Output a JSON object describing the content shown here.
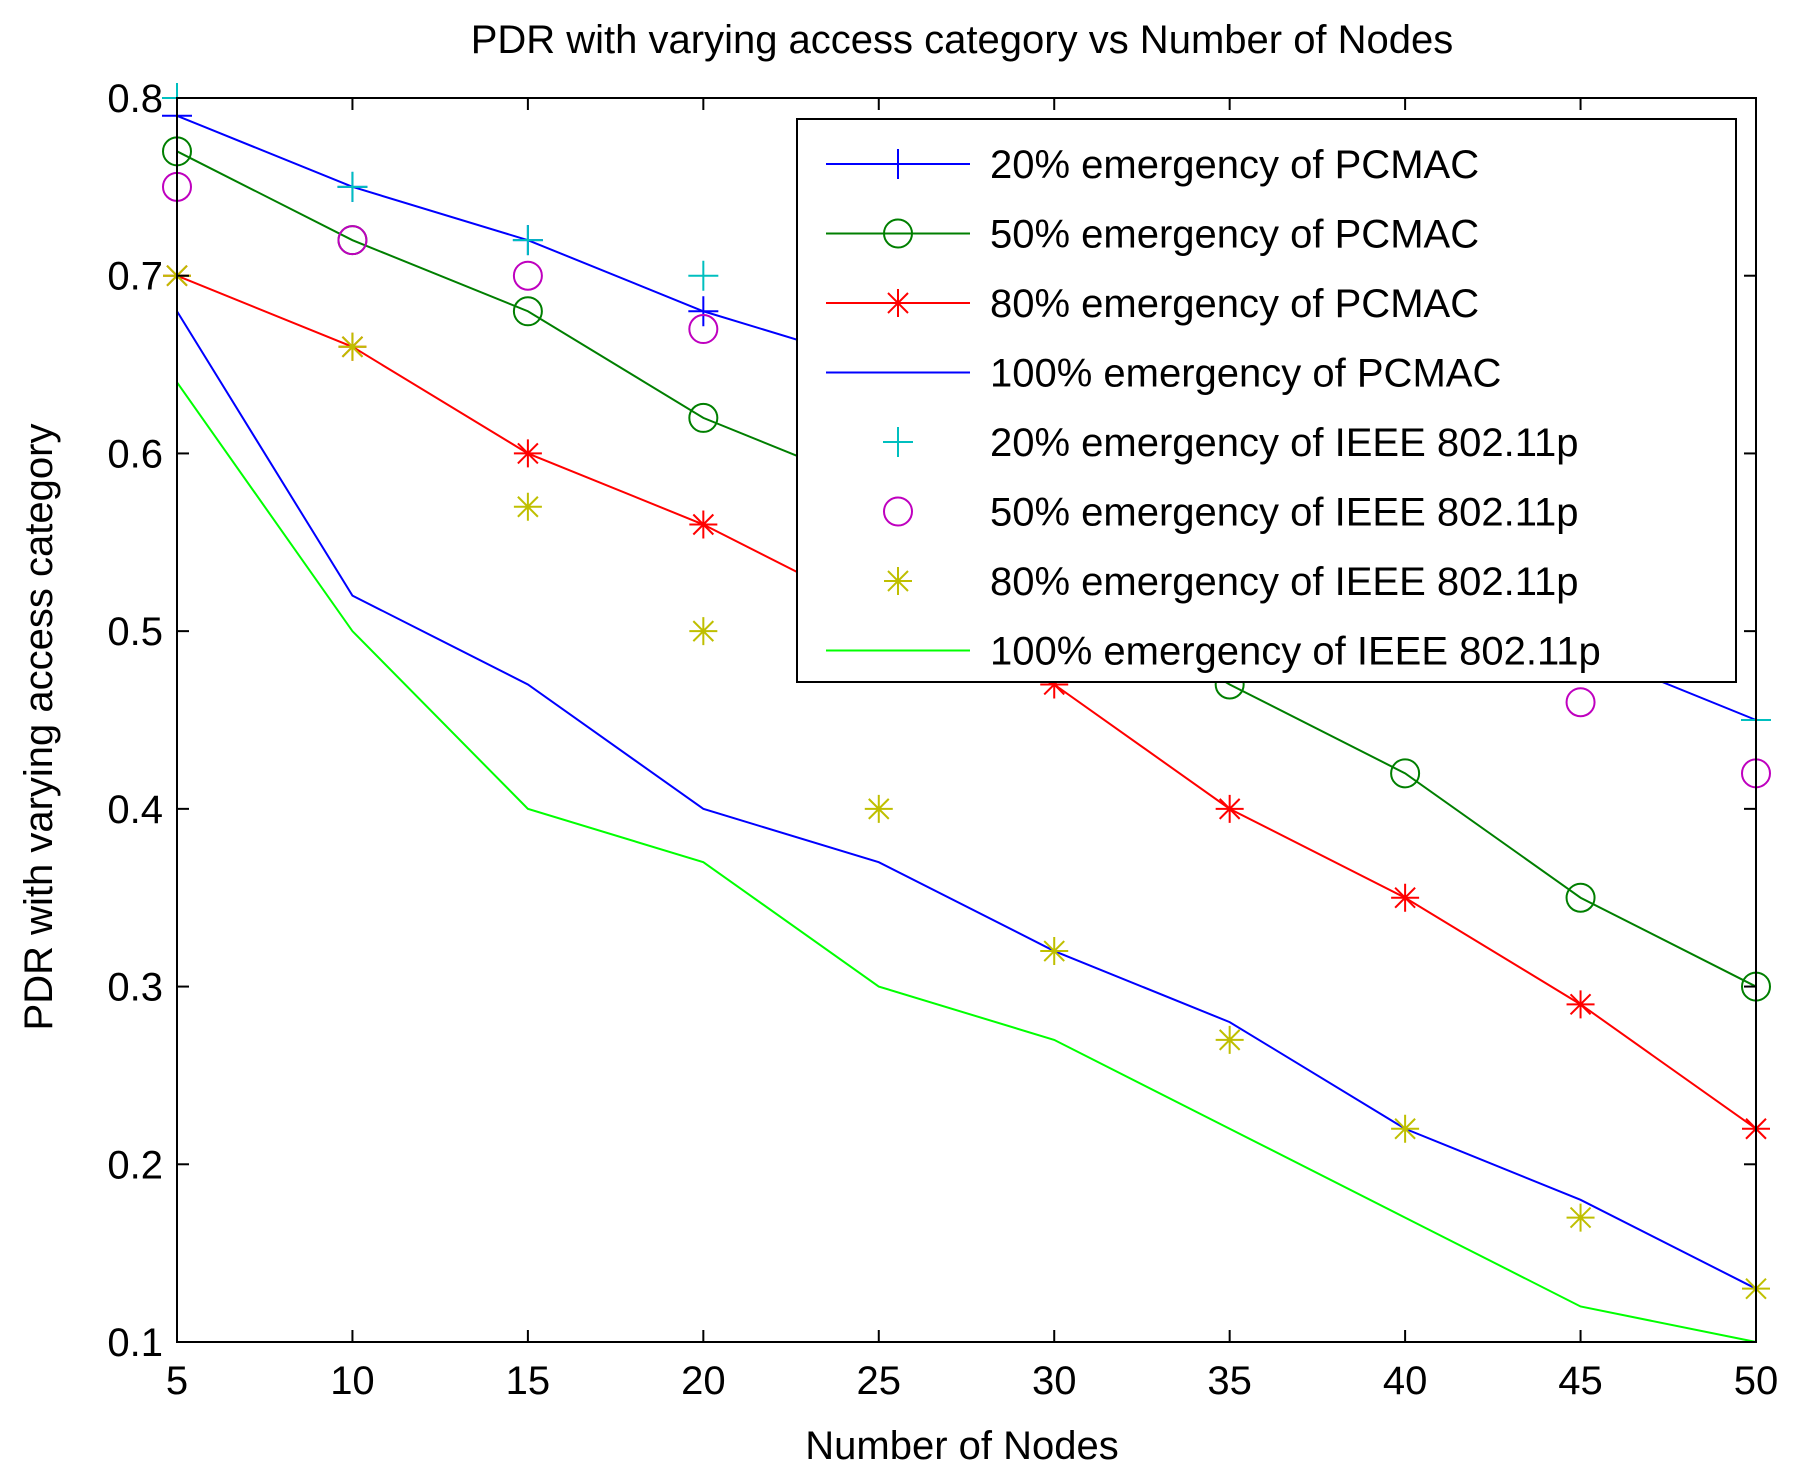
{
  "chart_data": {
    "type": "line",
    "title": "PDR with varying access category vs Number of Nodes",
    "xlabel": "Number of Nodes",
    "ylabel": "PDR with varying access category",
    "x": [
      5,
      10,
      15,
      20,
      25,
      30,
      35,
      40,
      45,
      50
    ],
    "xlim": [
      5,
      50
    ],
    "ylim": [
      0.1,
      0.8
    ],
    "xticks": [
      "5",
      "10",
      "15",
      "20",
      "25",
      "30",
      "35",
      "40",
      "45",
      "50"
    ],
    "yticks": [
      "0.1",
      "0.2",
      "0.3",
      "0.4",
      "0.5",
      "0.6",
      "0.7",
      "0.8"
    ],
    "grid": false,
    "legend_position": "top-right",
    "series": [
      {
        "name": "20% emergency of PCMAC",
        "color": "#0000ff",
        "line": true,
        "marker": "plus",
        "values": [
          0.79,
          0.75,
          0.72,
          0.68,
          0.65,
          0.62,
          0.58,
          0.54,
          0.49,
          0.45
        ]
      },
      {
        "name": "50% emergency of PCMAC",
        "color": "#007f00",
        "line": true,
        "marker": "circle",
        "values": [
          0.77,
          0.72,
          0.68,
          0.62,
          0.58,
          0.53,
          0.47,
          0.42,
          0.35,
          0.3
        ]
      },
      {
        "name": "80% emergency of PCMAC",
        "color": "#ff0000",
        "line": true,
        "marker": "asterisk",
        "values": [
          0.7,
          0.66,
          0.6,
          0.56,
          0.51,
          0.47,
          0.4,
          0.35,
          0.29,
          0.22
        ]
      },
      {
        "name": "100% emergency of PCMAC",
        "color": "#0000ff",
        "line": true,
        "marker": "none",
        "values": [
          0.68,
          0.52,
          0.47,
          0.4,
          0.37,
          0.32,
          0.28,
          0.22,
          0.18,
          0.13
        ]
      },
      {
        "name": "20% emergency of IEEE 802.11p",
        "color": "#00bfbf",
        "line": false,
        "marker": "plus",
        "values": [
          0.8,
          0.75,
          0.72,
          0.7,
          0.66,
          0.62,
          0.58,
          0.54,
          0.49,
          0.45
        ]
      },
      {
        "name": "50% emergency of IEEE 802.11p",
        "color": "#bf00bf",
        "line": false,
        "marker": "circle",
        "values": [
          0.75,
          0.72,
          0.7,
          0.67,
          0.63,
          0.59,
          0.55,
          0.51,
          0.46,
          0.42
        ]
      },
      {
        "name": "80% emergency of IEEE 802.11p",
        "color": "#bfbf00",
        "line": false,
        "marker": "asterisk",
        "values": [
          0.7,
          0.66,
          0.57,
          0.5,
          0.4,
          0.32,
          0.27,
          0.22,
          0.17,
          0.13
        ]
      },
      {
        "name": "100% emergency of IEEE 802.11p",
        "color": "#00ff00",
        "line": true,
        "marker": "none",
        "values": [
          0.64,
          0.5,
          0.4,
          0.37,
          0.3,
          0.27,
          0.22,
          0.17,
          0.12,
          0.1
        ]
      }
    ]
  }
}
